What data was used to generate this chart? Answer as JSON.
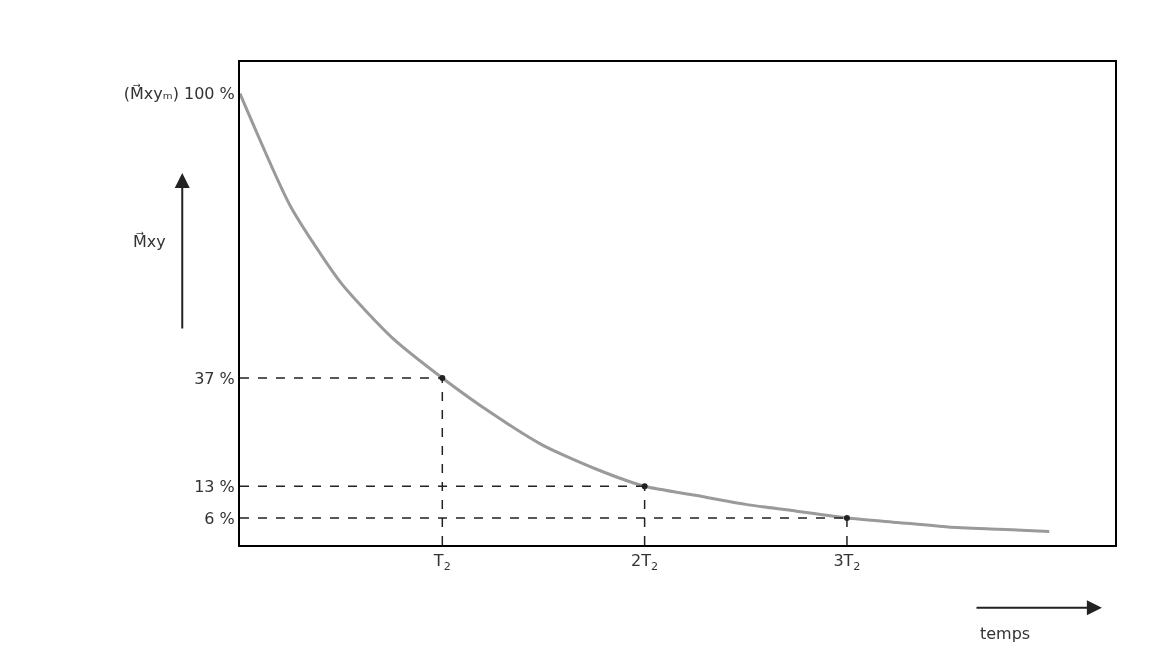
{
  "chart_data": {
    "type": "line",
    "xlabel": "temps",
    "ylabel": "M⃗xy",
    "marker": "none",
    "ylim": [
      0,
      107
    ],
    "categories": [
      null,
      null,
      null,
      null,
      "T$_{2}$",
      null,
      null,
      null,
      "2T$_{2}$",
      null,
      null,
      null,
      "3T$_{2}$",
      null,
      null,
      null,
      null,
      null
    ],
    "yticks": [
      {
        "value": 6,
        "label": "6 %"
      },
      {
        "value": 13,
        "label": "13 %"
      },
      {
        "value": 37,
        "label": "37 %"
      },
      {
        "value": 100,
        "label": "(M⃗xyₘ) 100 %"
      }
    ],
    "series": [
      {
        "color": "#9a9a9a",
        "line_style": "solid",
        "values": [
          100,
          75,
          58,
          46,
          37,
          29,
          22,
          17,
          13,
          11,
          9,
          7.5,
          6,
          5,
          4,
          3.5,
          3,
          null
        ]
      },
      {
        "color": "#222222",
        "line_style": "dashed",
        "values": [
          37,
          37,
          37,
          37,
          37,
          null,
          null,
          null,
          null,
          null,
          null,
          null,
          null,
          null,
          null,
          null,
          null,
          null
        ]
      },
      {
        "color": "#222222",
        "line_style": "dashed",
        "values": [
          13,
          13,
          13,
          13,
          13,
          13,
          13,
          13,
          13,
          null,
          null,
          null,
          null,
          null,
          null,
          null,
          null,
          null
        ]
      },
      {
        "color": "#222222",
        "line_style": "dashed",
        "values": [
          6,
          6,
          6,
          6,
          6,
          6,
          6,
          6,
          6,
          6,
          6,
          6,
          6,
          null,
          null,
          null,
          null,
          null
        ]
      },
      {
        "type": "lollipop",
        "color": "#222222",
        "line_style": "dashed",
        "values": [
          null,
          null,
          null,
          null,
          37,
          null,
          null,
          null,
          13,
          null,
          null,
          null,
          6,
          null,
          null,
          null,
          null,
          null
        ]
      }
    ]
  }
}
